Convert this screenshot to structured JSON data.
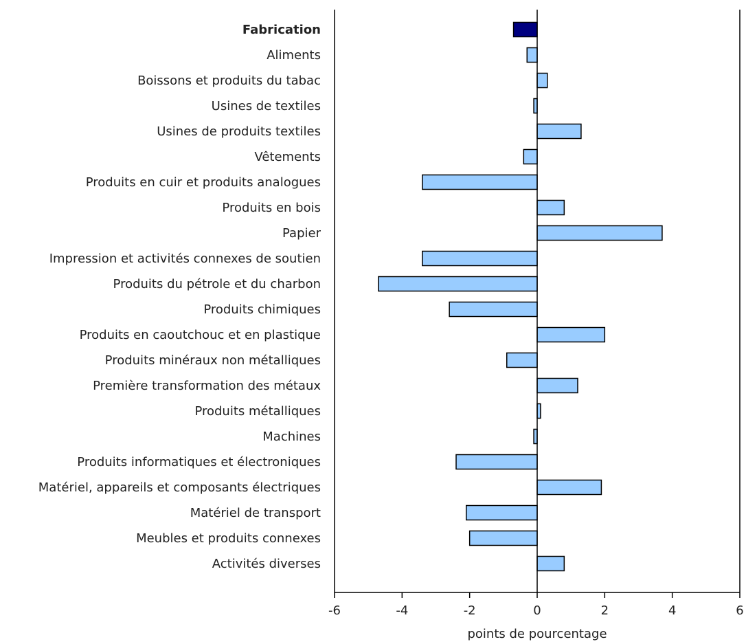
{
  "chart_data": {
    "type": "bar",
    "orientation": "horizontal",
    "categories": [
      "Fabrication",
      "Aliments",
      "Boissons et produits du tabac",
      "Usines de textiles",
      "Usines de produits textiles",
      "Vêtements",
      "Produits en cuir et produits analogues",
      "Produits en bois",
      "Papier",
      "Impression et activités connexes de soutien",
      "Produits du pétrole et du charbon",
      "Produits chimiques",
      "Produits en caoutchouc et en plastique",
      "Produits minéraux non métalliques",
      "Première transformation des métaux",
      "Produits métalliques",
      "Machines",
      "Produits informatiques et électroniques",
      "Matériel, appareils et composants électriques",
      "Matériel de transport",
      "Meubles et produits connexes",
      "Activités diverses"
    ],
    "values": [
      -0.7,
      -0.3,
      0.3,
      -0.1,
      1.3,
      -0.4,
      -3.4,
      0.8,
      3.7,
      -3.4,
      -4.7,
      -2.6,
      2.0,
      -0.9,
      1.2,
      0.1,
      -0.1,
      -2.4,
      1.9,
      -2.1,
      -2.0,
      0.8
    ],
    "highlight_index": 0,
    "colors": {
      "highlight": "#000080",
      "bar": "#99ccff",
      "outline": "#000000"
    },
    "xlim": [
      -6,
      6
    ],
    "xticks": [
      -6,
      -4,
      -2,
      0,
      2,
      4,
      6
    ],
    "xlabel": "points de pourcentage",
    "title": "",
    "grid": false,
    "legend": "none"
  }
}
